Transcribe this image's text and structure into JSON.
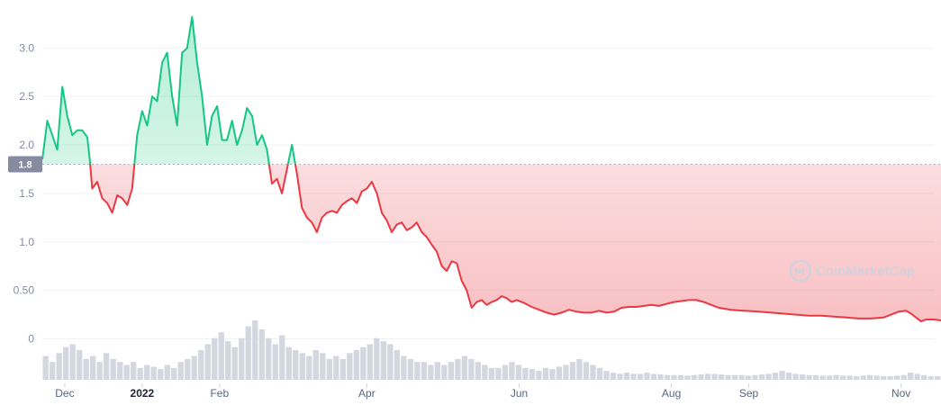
{
  "chart_data": {
    "type": "area",
    "baseline_label": "1.8",
    "baseline": 1.8,
    "ylim": [
      -0.45,
      3.42
    ],
    "yticks": [
      {
        "value": 0,
        "label": "0"
      },
      {
        "value": 0.5,
        "label": "0.50"
      },
      {
        "value": 1.0,
        "label": "1.0"
      },
      {
        "value": 1.5,
        "label": "1.5"
      },
      {
        "value": 2.0,
        "label": "2.0"
      },
      {
        "value": 2.5,
        "label": "2.5"
      },
      {
        "value": 3.0,
        "label": "3.0"
      }
    ],
    "x_start": "2021-11-22",
    "x_end": "2022-11-17",
    "xticks": [
      {
        "date": "2021-12-01",
        "label": "Dec",
        "major": false
      },
      {
        "date": "2022-01-01",
        "label": "2022",
        "major": true
      },
      {
        "date": "2022-02-01",
        "label": "Feb",
        "major": false
      },
      {
        "date": "2022-04-01",
        "label": "Apr",
        "major": false
      },
      {
        "date": "2022-06-01",
        "label": "Jun",
        "major": false
      },
      {
        "date": "2022-08-01",
        "label": "Aug",
        "major": false
      },
      {
        "date": "2022-09-01",
        "label": "Sep",
        "major": false
      },
      {
        "date": "2022-11-01",
        "label": "Nov",
        "major": false
      }
    ],
    "series": [
      {
        "points": [
          [
            "2021-11-22",
            1.85
          ],
          [
            "2021-11-24",
            2.25
          ],
          [
            "2021-11-26",
            2.1
          ],
          [
            "2021-11-28",
            1.95
          ],
          [
            "2021-11-30",
            2.6
          ],
          [
            "2021-12-02",
            2.3
          ],
          [
            "2021-12-04",
            2.1
          ],
          [
            "2021-12-06",
            2.15
          ],
          [
            "2021-12-08",
            2.15
          ],
          [
            "2021-12-10",
            2.08
          ],
          [
            "2021-12-11",
            1.85
          ],
          [
            "2021-12-12",
            1.55
          ],
          [
            "2021-12-14",
            1.62
          ],
          [
            "2021-12-16",
            1.45
          ],
          [
            "2021-12-18",
            1.4
          ],
          [
            "2021-12-20",
            1.3
          ],
          [
            "2021-12-22",
            1.48
          ],
          [
            "2021-12-24",
            1.45
          ],
          [
            "2021-12-26",
            1.38
          ],
          [
            "2021-12-28",
            1.55
          ],
          [
            "2021-12-30",
            2.1
          ],
          [
            "2022-01-01",
            2.35
          ],
          [
            "2022-01-03",
            2.2
          ],
          [
            "2022-01-05",
            2.5
          ],
          [
            "2022-01-07",
            2.45
          ],
          [
            "2022-01-09",
            2.85
          ],
          [
            "2022-01-11",
            2.95
          ],
          [
            "2022-01-13",
            2.5
          ],
          [
            "2022-01-15",
            2.2
          ],
          [
            "2022-01-17",
            2.95
          ],
          [
            "2022-01-19",
            3.0
          ],
          [
            "2022-01-21",
            3.32
          ],
          [
            "2022-01-23",
            2.85
          ],
          [
            "2022-01-25",
            2.5
          ],
          [
            "2022-01-27",
            2.0
          ],
          [
            "2022-01-29",
            2.3
          ],
          [
            "2022-01-31",
            2.4
          ],
          [
            "2022-02-02",
            2.05
          ],
          [
            "2022-02-04",
            2.05
          ],
          [
            "2022-02-06",
            2.25
          ],
          [
            "2022-02-08",
            2.0
          ],
          [
            "2022-02-10",
            2.15
          ],
          [
            "2022-02-12",
            2.38
          ],
          [
            "2022-02-14",
            2.3
          ],
          [
            "2022-02-16",
            2.0
          ],
          [
            "2022-02-18",
            2.1
          ],
          [
            "2022-02-20",
            1.95
          ],
          [
            "2022-02-22",
            1.6
          ],
          [
            "2022-02-24",
            1.65
          ],
          [
            "2022-02-26",
            1.5
          ],
          [
            "2022-02-28",
            1.75
          ],
          [
            "2022-03-02",
            2.0
          ],
          [
            "2022-03-04",
            1.7
          ],
          [
            "2022-03-06",
            1.35
          ],
          [
            "2022-03-08",
            1.25
          ],
          [
            "2022-03-10",
            1.2
          ],
          [
            "2022-03-12",
            1.1
          ],
          [
            "2022-03-14",
            1.25
          ],
          [
            "2022-03-16",
            1.3
          ],
          [
            "2022-03-18",
            1.32
          ],
          [
            "2022-03-20",
            1.3
          ],
          [
            "2022-03-22",
            1.38
          ],
          [
            "2022-03-24",
            1.42
          ],
          [
            "2022-03-26",
            1.45
          ],
          [
            "2022-03-28",
            1.4
          ],
          [
            "2022-03-30",
            1.52
          ],
          [
            "2022-04-01",
            1.55
          ],
          [
            "2022-04-03",
            1.62
          ],
          [
            "2022-04-05",
            1.5
          ],
          [
            "2022-04-07",
            1.3
          ],
          [
            "2022-04-09",
            1.22
          ],
          [
            "2022-04-11",
            1.1
          ],
          [
            "2022-04-13",
            1.18
          ],
          [
            "2022-04-15",
            1.2
          ],
          [
            "2022-04-17",
            1.12
          ],
          [
            "2022-04-19",
            1.15
          ],
          [
            "2022-04-21",
            1.2
          ],
          [
            "2022-04-23",
            1.1
          ],
          [
            "2022-04-25",
            1.05
          ],
          [
            "2022-04-27",
            0.97
          ],
          [
            "2022-04-29",
            0.9
          ],
          [
            "2022-05-01",
            0.75
          ],
          [
            "2022-05-03",
            0.7
          ],
          [
            "2022-05-05",
            0.8
          ],
          [
            "2022-05-07",
            0.78
          ],
          [
            "2022-05-09",
            0.6
          ],
          [
            "2022-05-11",
            0.5
          ],
          [
            "2022-05-13",
            0.32
          ],
          [
            "2022-05-15",
            0.38
          ],
          [
            "2022-05-17",
            0.4
          ],
          [
            "2022-05-19",
            0.35
          ],
          [
            "2022-05-21",
            0.38
          ],
          [
            "2022-05-23",
            0.4
          ],
          [
            "2022-05-25",
            0.44
          ],
          [
            "2022-05-27",
            0.42
          ],
          [
            "2022-05-29",
            0.38
          ],
          [
            "2022-05-31",
            0.4
          ],
          [
            "2022-06-03",
            0.37
          ],
          [
            "2022-06-06",
            0.33
          ],
          [
            "2022-06-09",
            0.3
          ],
          [
            "2022-06-12",
            0.27
          ],
          [
            "2022-06-15",
            0.25
          ],
          [
            "2022-06-18",
            0.27
          ],
          [
            "2022-06-21",
            0.3
          ],
          [
            "2022-06-24",
            0.28
          ],
          [
            "2022-06-27",
            0.27
          ],
          [
            "2022-06-30",
            0.27
          ],
          [
            "2022-07-03",
            0.29
          ],
          [
            "2022-07-06",
            0.27
          ],
          [
            "2022-07-09",
            0.28
          ],
          [
            "2022-07-12",
            0.32
          ],
          [
            "2022-07-15",
            0.33
          ],
          [
            "2022-07-18",
            0.33
          ],
          [
            "2022-07-21",
            0.34
          ],
          [
            "2022-07-24",
            0.35
          ],
          [
            "2022-07-27",
            0.34
          ],
          [
            "2022-07-30",
            0.36
          ],
          [
            "2022-08-02",
            0.38
          ],
          [
            "2022-08-05",
            0.39
          ],
          [
            "2022-08-08",
            0.4
          ],
          [
            "2022-08-11",
            0.4
          ],
          [
            "2022-08-14",
            0.38
          ],
          [
            "2022-08-17",
            0.35
          ],
          [
            "2022-08-20",
            0.32
          ],
          [
            "2022-08-25",
            0.3
          ],
          [
            "2022-08-30",
            0.29
          ],
          [
            "2022-09-05",
            0.28
          ],
          [
            "2022-09-10",
            0.27
          ],
          [
            "2022-09-15",
            0.26
          ],
          [
            "2022-09-20",
            0.25
          ],
          [
            "2022-09-25",
            0.24
          ],
          [
            "2022-09-30",
            0.24
          ],
          [
            "2022-10-05",
            0.23
          ],
          [
            "2022-10-10",
            0.22
          ],
          [
            "2022-10-15",
            0.21
          ],
          [
            "2022-10-20",
            0.21
          ],
          [
            "2022-10-25",
            0.22
          ],
          [
            "2022-10-28",
            0.25
          ],
          [
            "2022-10-31",
            0.28
          ],
          [
            "2022-11-03",
            0.29
          ],
          [
            "2022-11-05",
            0.26
          ],
          [
            "2022-11-07",
            0.22
          ],
          [
            "2022-11-09",
            0.18
          ],
          [
            "2022-11-11",
            0.2
          ],
          [
            "2022-11-14",
            0.2
          ],
          [
            "2022-11-17",
            0.19
          ]
        ]
      }
    ],
    "volume": {
      "relative": true,
      "values": [
        0.4,
        0.3,
        0.45,
        0.55,
        0.6,
        0.5,
        0.35,
        0.4,
        0.3,
        0.45,
        0.35,
        0.3,
        0.25,
        0.3,
        0.2,
        0.25,
        0.22,
        0.18,
        0.25,
        0.2,
        0.3,
        0.35,
        0.4,
        0.5,
        0.6,
        0.7,
        0.8,
        0.65,
        0.55,
        0.7,
        0.9,
        1.0,
        0.85,
        0.7,
        0.6,
        0.75,
        0.55,
        0.5,
        0.45,
        0.4,
        0.5,
        0.45,
        0.35,
        0.4,
        0.35,
        0.45,
        0.5,
        0.55,
        0.6,
        0.7,
        0.65,
        0.6,
        0.5,
        0.4,
        0.35,
        0.3,
        0.3,
        0.25,
        0.3,
        0.25,
        0.3,
        0.35,
        0.4,
        0.35,
        0.3,
        0.25,
        0.2,
        0.2,
        0.25,
        0.3,
        0.25,
        0.2,
        0.18,
        0.15,
        0.2,
        0.18,
        0.22,
        0.25,
        0.3,
        0.35,
        0.3,
        0.25,
        0.2,
        0.15,
        0.12,
        0.1,
        0.12,
        0.1,
        0.1,
        0.12,
        0.1,
        0.09,
        0.08,
        0.08,
        0.08,
        0.07,
        0.08,
        0.09,
        0.1,
        0.1,
        0.09,
        0.08,
        0.08,
        0.08,
        0.07,
        0.08,
        0.09,
        0.1,
        0.12,
        0.15,
        0.12,
        0.1,
        0.09,
        0.08,
        0.08,
        0.07,
        0.07,
        0.08,
        0.07,
        0.07,
        0.06,
        0.07,
        0.08,
        0.07,
        0.06,
        0.06,
        0.07,
        0.08,
        0.12,
        0.1,
        0.08,
        0.06,
        0.06
      ]
    },
    "colors": {
      "up": "#16c784",
      "down": "#ea3943",
      "up_fill": "#16c784",
      "down_fill": "#ea3943",
      "baseline_line": "#a6b0c3",
      "badge": "#858ca2",
      "grid": "#eff2f5",
      "volume": "#d3d7e0"
    }
  },
  "watermark": {
    "label": "CoinMarketCap",
    "icon": "coinmarketcap-logo-icon"
  }
}
